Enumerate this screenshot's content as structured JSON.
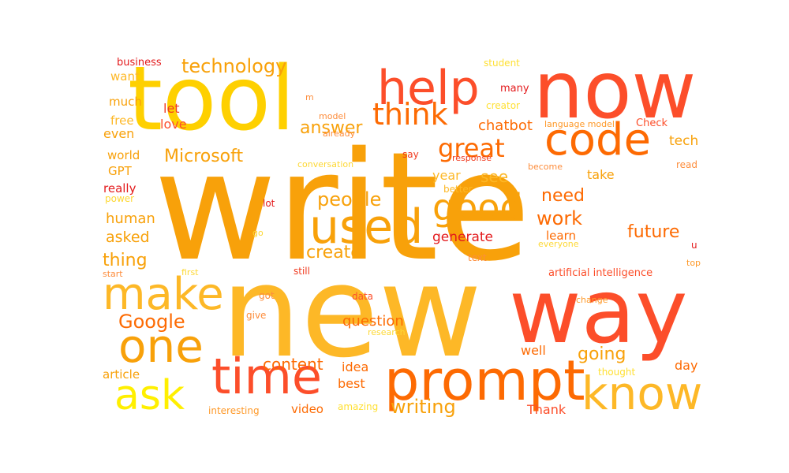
{
  "colors": {
    "red": "#e31a1c",
    "red_orange": "#f03b20",
    "orange_red": "#fc4e2a",
    "dark_orange": "#fd6a02",
    "orange": "#fd8d3c",
    "amber": "#fe9929",
    "dark_gold": "#f8a10a",
    "gold": "#fdb827",
    "yellow_gold": "#fed000",
    "yellow": "#ffe033",
    "bright_yellow": "#ffef00",
    "pale_yellow": "#fdd835",
    "background": "#ffffff"
  },
  "words": {
    "write": "write",
    "new": "new",
    "tool": "tool",
    "now": "now",
    "way": "way",
    "prompt": "prompt",
    "help": "help",
    "code": "code",
    "time": "time",
    "know": "know",
    "used": "used",
    "one": "one",
    "make": "make",
    "ask": "ask",
    "good": "good",
    "think": "think",
    "great": "great",
    "technology": "technology",
    "people": "people",
    "Microsoft": "Microsoft",
    "answer": "answer",
    "work": "work",
    "future": "future",
    "Google": "Google",
    "writing": "writing",
    "create": "create",
    "content": "content",
    "going": "going",
    "need": "need",
    "see": "see",
    "human": "human",
    "thing": "thing",
    "asked": "asked",
    "question": "question",
    "chatbot": "chatbot",
    "generate": "generate",
    "idea": "idea",
    "best": "best",
    "video": "video",
    "Thank": "Thank",
    "year": "year",
    "take": "take",
    "tech": "tech",
    "learn": "learn",
    "well": "well",
    "day": "day",
    "article": "article",
    "let": "let",
    "love": "love",
    "even": "even",
    "free": "free",
    "much": "much",
    "want": "want",
    "world": "world",
    "GPT": "GPT",
    "really": "really",
    "power": "power",
    "business": "business",
    "student": "student",
    "many": "many",
    "creator": "creator",
    "model": "model",
    "m": "m",
    "already": "already",
    "language_model": "language model",
    "Check": "Check",
    "say": "say",
    "response": "response",
    "become": "become",
    "read": "read",
    "conversation": "conversation",
    "better": "better",
    "lot": "lot",
    "go": "go",
    "u": "u",
    "everyone": "everyone",
    "text": "text",
    "top": "top",
    "first": "first",
    "start": "start",
    "still": "still",
    "artificial_intelligence": "artificial intelligence",
    "got": "got",
    "data": "data",
    "change": "change",
    "give": "give",
    "research": "research",
    "thought": "thought",
    "interesting": "interesting",
    "amazing": "amazing"
  }
}
